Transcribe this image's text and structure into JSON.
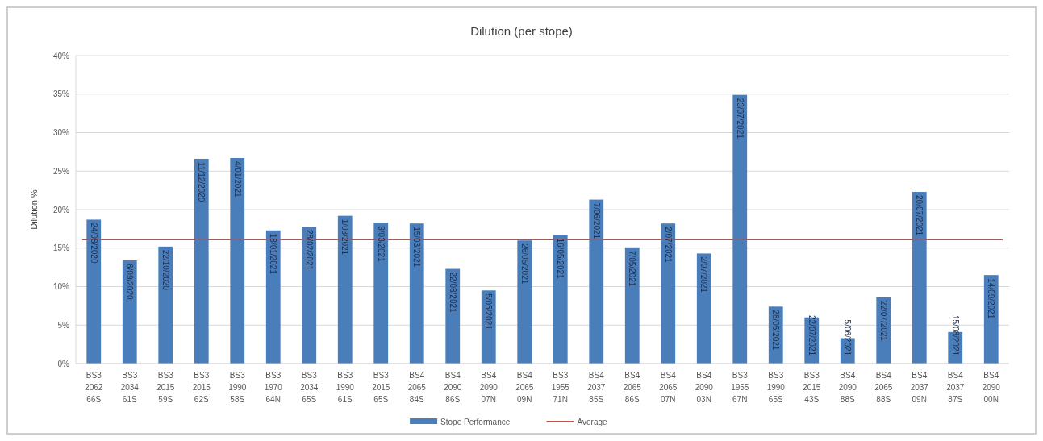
{
  "chart_data": {
    "type": "bar",
    "title": "Dilution (per stope)",
    "ylabel": "Dilution %",
    "categories": [
      "BS3 2062 66S",
      "BS3 2034 61S",
      "BS3 2015 59S",
      "BS3 2015 62S",
      "BS3 1990 58S",
      "BS3 1970 64N",
      "BS3 2034 65S",
      "BS3 1990 61S",
      "BS3 2015 65S",
      "BS4 2065 84S",
      "BS4 2090 86S",
      "BS4 2090 07N",
      "BS4 2065 09N",
      "BS3 1955 71N",
      "BS4 2037 85S",
      "BS4 2065 86S",
      "BS4 2065 07N",
      "BS4 2090 03N",
      "BS3 1955 67N",
      "BS3 1990 65S",
      "BS3 2015 43S",
      "BS4 2090 88S",
      "BS4 2065 88S",
      "BS4 2037 09N",
      "BS4 2037 87S",
      "BS4 2090 00N"
    ],
    "series": [
      {
        "name": "Stope Performance",
        "color": "#4a7ebb",
        "values": [
          18.7,
          13.4,
          15.2,
          26.6,
          26.7,
          17.3,
          17.8,
          19.2,
          18.3,
          18.2,
          12.3,
          9.5,
          16.0,
          16.7,
          21.3,
          15.1,
          18.2,
          14.3,
          34.9,
          7.4,
          6.0,
          3.3,
          8.6,
          22.3,
          4.1,
          11.5
        ]
      }
    ],
    "ylim": [
      0,
      40
    ],
    "yticks": [
      {
        "value": 0,
        "label": "0%"
      },
      {
        "value": 5,
        "label": "5%"
      },
      {
        "value": 10,
        "label": "10%"
      },
      {
        "value": 15,
        "label": "15%"
      },
      {
        "value": 20,
        "label": "20%"
      },
      {
        "value": 25,
        "label": "25%"
      },
      {
        "value": 30,
        "label": "30%"
      },
      {
        "value": 35,
        "label": "35%"
      },
      {
        "value": 40,
        "label": "40%"
      }
    ],
    "grid": "y",
    "ref_lines": [
      {
        "axis": "y",
        "value": 16.1,
        "label": "Average",
        "color": "#c0504d"
      }
    ],
    "legend": "bottom",
    "annotations": [
      {
        "text": "24/08/2020",
        "x": "BS3 2062 66S",
        "y": 18.7
      },
      {
        "text": "6/09/2020",
        "x": "BS3 2034 61S",
        "y": 13.4
      },
      {
        "text": "22/10/2020",
        "x": "BS3 2015 59S",
        "y": 15.2
      },
      {
        "text": "11/12/2020",
        "x": "BS3 2015 62S",
        "y": 26.6
      },
      {
        "text": "4/01/2021",
        "x": "BS3 1990 58S",
        "y": 26.7
      },
      {
        "text": "18/01/2021",
        "x": "BS3 1970 64N",
        "y": 17.3
      },
      {
        "text": "28/02/2021",
        "x": "BS3 2034 65S",
        "y": 17.8
      },
      {
        "text": "1/03/2021",
        "x": "BS3 1990 61S",
        "y": 19.2
      },
      {
        "text": "9/03/2021",
        "x": "BS3 2015 65S",
        "y": 18.3
      },
      {
        "text": "15/03/2021",
        "x": "BS4 2065 84S",
        "y": 18.2
      },
      {
        "text": "22/03/2021",
        "x": "BS4 2090 86S",
        "y": 12.3
      },
      {
        "text": "5/05/2021",
        "x": "BS4 2090 07N",
        "y": 9.5
      },
      {
        "text": "26/05/2021",
        "x": "BS4 2065 09N",
        "y": 16.0
      },
      {
        "text": "16/05/2021",
        "x": "BS3 1955 71N",
        "y": 16.7
      },
      {
        "text": "7/06/2021",
        "x": "BS4 2037 85S",
        "y": 21.3
      },
      {
        "text": "7/05/2021",
        "x": "BS4 2065 86S",
        "y": 15.1
      },
      {
        "text": "2/07/2021",
        "x": "BS4 2065 07N",
        "y": 18.2
      },
      {
        "text": "2/07/2021",
        "x": "BS4 2090 03N",
        "y": 14.3
      },
      {
        "text": "23/07/2021",
        "x": "BS3 1955 67N",
        "y": 34.9
      },
      {
        "text": "28/05/2021",
        "x": "BS3 1990 65S",
        "y": 7.4
      },
      {
        "text": "22/07/2021",
        "x": "BS3 2015 43S",
        "y": 6.0
      },
      {
        "text": "5/06/2021",
        "x": "BS4 2090 88S",
        "y": 3.3
      },
      {
        "text": "22/07/2021",
        "x": "BS4 2065 88S",
        "y": 8.6
      },
      {
        "text": "20/07/2021",
        "x": "BS4 2037 09N",
        "y": 22.3
      },
      {
        "text": "15/08/2021",
        "x": "BS4 2037 87S",
        "y": 4.1
      },
      {
        "text": "14/09/2021",
        "x": "BS4 2090 00N",
        "y": 11.5
      }
    ]
  }
}
